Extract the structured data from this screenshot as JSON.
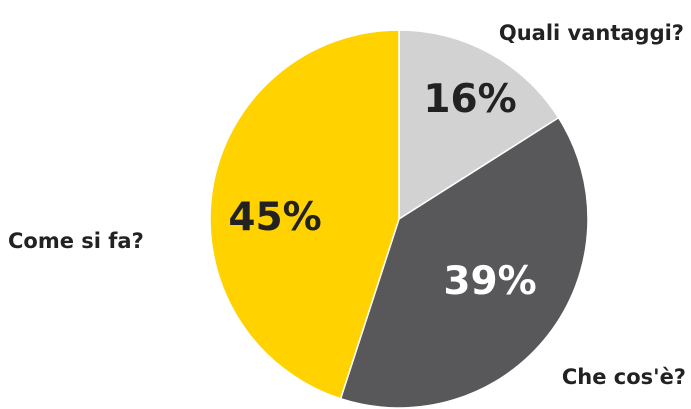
{
  "chart_data": {
    "type": "pie",
    "title": "",
    "slices": [
      {
        "label": "Quali vantaggi?",
        "value": 16,
        "value_label": "16%",
        "color": "#d2d2d3",
        "text_color": "#222222"
      },
      {
        "label": "Che cos'è?",
        "value": 39,
        "value_label": "39%",
        "color": "#58585a",
        "text_color": "#ffffff"
      },
      {
        "label": "Come si fa?",
        "value": 45,
        "value_label": "45%",
        "color": "#ffd200",
        "text_color": "#222222"
      }
    ],
    "start_angle": "12 o'clock",
    "direction": "clockwise",
    "legend": "none"
  }
}
